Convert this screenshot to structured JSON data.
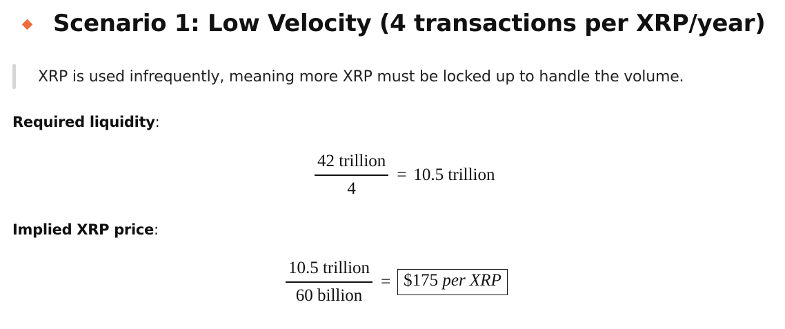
{
  "heading": {
    "text": "Scenario 1: Low Velocity (4 transactions per XRP/year)",
    "bullet_color": "#ef6b3b"
  },
  "quote": {
    "text": "XRP is used infrequently, meaning more XRP must be locked up to handle the volume."
  },
  "liquidity": {
    "label_bold": "Required liquidity",
    "label_suffix": ":",
    "numerator": "42 trillion",
    "denominator": "4",
    "operator": "=",
    "result": "10.5 trillion"
  },
  "price": {
    "label_bold": "Implied XRP price",
    "label_suffix": ":",
    "numerator": "10.5 trillion",
    "denominator": "60 billion",
    "operator": "=",
    "result_amount": "$175",
    "result_unit": "per XRP"
  }
}
